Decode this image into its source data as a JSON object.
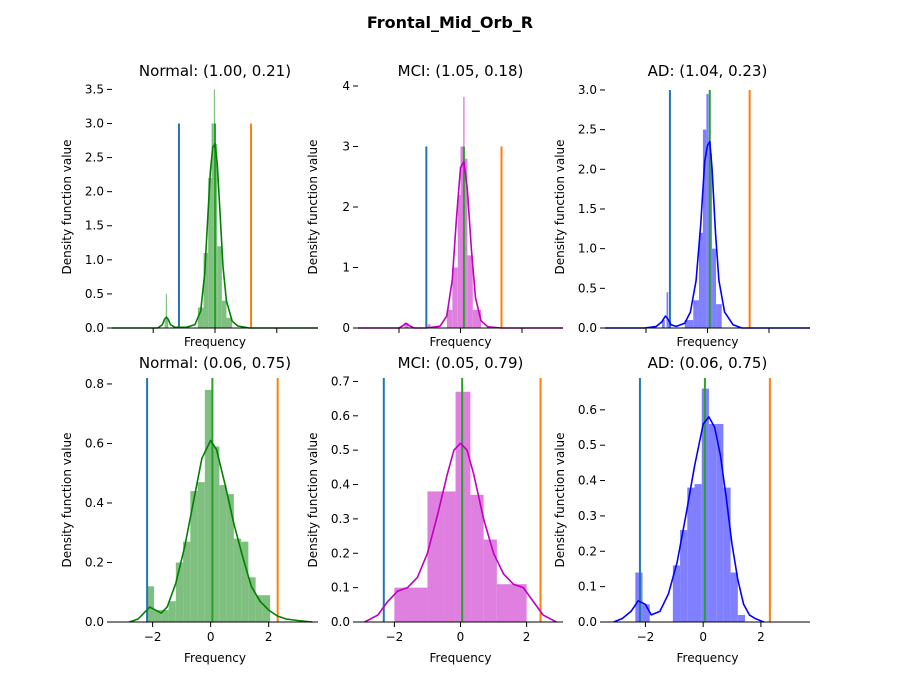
{
  "figure": {
    "suptitle": "Frontal_Mid_Orb_R"
  },
  "colors": {
    "Normal": "#008000",
    "MCI": "#bf00bf",
    "AD": "#0000ff",
    "Normal_hist": "#7fbf7f",
    "MCI_hist": "#df7fdf",
    "AD_hist": "#7f7fff",
    "lower_line": "#1f77b4",
    "upper_line": "#ff7f0e",
    "mean_line": "#2ca02c"
  },
  "chart_data": [
    {
      "type": "histogram+kde",
      "title": "Normal: (1.00, 0.21)",
      "group": "Normal",
      "xlabel": "Frequency",
      "ylabel": "Density function value",
      "xlim": [
        -0.8,
        2.8
      ],
      "ylim": [
        0,
        3.55
      ],
      "yticks": [
        0.0,
        0.5,
        1.0,
        1.5,
        2.0,
        2.5,
        3.0,
        3.5
      ],
      "xticks": [],
      "hist": [
        {
          "x0": 0.12,
          "x1": 0.14,
          "h": 0.15
        },
        {
          "x0": 0.14,
          "x1": 0.16,
          "h": 0.5
        },
        {
          "x0": 0.16,
          "x1": 0.18,
          "h": 0.15
        },
        {
          "x0": 0.7,
          "x1": 0.8,
          "h": 0.3
        },
        {
          "x0": 0.8,
          "x1": 0.88,
          "h": 1.1
        },
        {
          "x0": 0.88,
          "x1": 0.94,
          "h": 2.2
        },
        {
          "x0": 0.94,
          "x1": 0.98,
          "h": 3.0
        },
        {
          "x0": 0.98,
          "x1": 1.0,
          "h": 3.5
        },
        {
          "x0": 1.0,
          "x1": 1.04,
          "h": 2.7
        },
        {
          "x0": 1.04,
          "x1": 1.12,
          "h": 1.2
        },
        {
          "x0": 1.12,
          "x1": 1.2,
          "h": 0.4
        },
        {
          "x0": 1.2,
          "x1": 1.3,
          "h": 0.15
        }
      ],
      "kde": {
        "x": [
          -0.8,
          0.0,
          0.08,
          0.12,
          0.15,
          0.18,
          0.22,
          0.3,
          0.5,
          0.65,
          0.75,
          0.82,
          0.88,
          0.92,
          0.96,
          1.0,
          1.04,
          1.08,
          1.14,
          1.2,
          1.3,
          1.4,
          1.6,
          2.8
        ],
        "y": [
          0.0,
          0.0,
          0.05,
          0.13,
          0.16,
          0.13,
          0.05,
          0.01,
          0.01,
          0.05,
          0.25,
          0.8,
          1.7,
          2.3,
          2.65,
          2.7,
          2.4,
          1.8,
          0.9,
          0.4,
          0.1,
          0.03,
          0.0,
          0.0
        ]
      },
      "vlines": [
        {
          "x": 0.37,
          "ymax": 3.0,
          "role": "lower_line"
        },
        {
          "x": 1.0,
          "ymax": 3.0,
          "role": "mean_line"
        },
        {
          "x": 1.63,
          "ymax": 3.0,
          "role": "upper_line"
        }
      ]
    },
    {
      "type": "histogram+kde",
      "title": "MCI: (1.05, 0.18)",
      "group": "MCI",
      "xlabel": "Frequency",
      "ylabel": "Density function value",
      "xlim": [
        -0.5,
        2.5
      ],
      "ylim": [
        0,
        4.0
      ],
      "yticks": [
        0,
        1,
        2,
        3,
        4
      ],
      "xticks": [],
      "hist": [
        {
          "x0": 0.18,
          "x1": 0.24,
          "h": 0.08
        },
        {
          "x0": 0.52,
          "x1": 0.56,
          "h": 0.06
        },
        {
          "x0": 0.8,
          "x1": 0.88,
          "h": 0.3
        },
        {
          "x0": 0.88,
          "x1": 0.96,
          "h": 1.0
        },
        {
          "x0": 0.96,
          "x1": 1.0,
          "h": 2.2
        },
        {
          "x0": 1.0,
          "x1": 1.04,
          "h": 3.0
        },
        {
          "x0": 1.04,
          "x1": 1.06,
          "h": 3.82
        },
        {
          "x0": 1.06,
          "x1": 1.1,
          "h": 2.8
        },
        {
          "x0": 1.1,
          "x1": 1.18,
          "h": 1.2
        },
        {
          "x0": 1.18,
          "x1": 1.3,
          "h": 0.3
        }
      ],
      "kde": {
        "x": [
          -0.5,
          0.1,
          0.16,
          0.2,
          0.25,
          0.32,
          0.5,
          0.7,
          0.8,
          0.88,
          0.94,
          1.0,
          1.05,
          1.1,
          1.16,
          1.22,
          1.3,
          1.4,
          1.6,
          2.5
        ],
        "y": [
          0.0,
          0.0,
          0.04,
          0.08,
          0.04,
          0.0,
          0.0,
          0.03,
          0.2,
          0.8,
          1.8,
          2.65,
          2.75,
          2.3,
          1.3,
          0.5,
          0.12,
          0.02,
          0.0,
          0.0
        ]
      },
      "vlines": [
        {
          "x": 0.5,
          "ymax": 3.0,
          "role": "lower_line"
        },
        {
          "x": 1.05,
          "ymax": 3.0,
          "role": "mean_line"
        },
        {
          "x": 1.6,
          "ymax": 3.0,
          "role": "upper_line"
        }
      ]
    },
    {
      "type": "histogram+kde",
      "title": "AD: (1.04, 0.23)",
      "group": "AD",
      "xlabel": "Frequency",
      "ylabel": "Density function value",
      "xlim": [
        -0.8,
        2.8
      ],
      "ylim": [
        0,
        3.05
      ],
      "yticks": [
        0.0,
        0.5,
        1.0,
        1.5,
        2.0,
        2.5,
        3.0
      ],
      "xticks": [],
      "hist": [
        {
          "x0": 0.2,
          "x1": 0.25,
          "h": 0.1
        },
        {
          "x0": 0.28,
          "x1": 0.31,
          "h": 0.45
        },
        {
          "x0": 0.31,
          "x1": 0.34,
          "h": 0.1
        },
        {
          "x0": 0.6,
          "x1": 0.75,
          "h": 0.1
        },
        {
          "x0": 0.75,
          "x1": 0.85,
          "h": 0.35
        },
        {
          "x0": 0.85,
          "x1": 0.92,
          "h": 1.2
        },
        {
          "x0": 0.92,
          "x1": 0.98,
          "h": 2.5
        },
        {
          "x0": 0.98,
          "x1": 1.02,
          "h": 2.95
        },
        {
          "x0": 1.02,
          "x1": 1.08,
          "h": 2.2
        },
        {
          "x0": 1.08,
          "x1": 1.15,
          "h": 1.0
        },
        {
          "x0": 1.15,
          "x1": 1.25,
          "h": 0.3
        }
      ],
      "kde": {
        "x": [
          -0.8,
          -0.1,
          0.1,
          0.2,
          0.26,
          0.3,
          0.36,
          0.45,
          0.6,
          0.7,
          0.8,
          0.88,
          0.95,
          1.0,
          1.04,
          1.08,
          1.14,
          1.2,
          1.3,
          1.45,
          1.6,
          2.8
        ],
        "y": [
          0.0,
          0.0,
          0.02,
          0.08,
          0.15,
          0.12,
          0.04,
          0.02,
          0.06,
          0.2,
          0.6,
          1.3,
          2.1,
          2.3,
          2.35,
          2.0,
          1.2,
          0.6,
          0.2,
          0.04,
          0.0,
          0.0
        ]
      },
      "vlines": [
        {
          "x": 0.34,
          "ymax": 3.0,
          "role": "lower_line"
        },
        {
          "x": 1.04,
          "ymax": 3.0,
          "role": "mean_line"
        },
        {
          "x": 1.74,
          "ymax": 3.0,
          "role": "upper_line"
        }
      ]
    },
    {
      "type": "histogram+kde",
      "title": "Normal: (0.06, 0.75)",
      "group": "Normal",
      "xlabel": "Frequency",
      "ylabel": "Density function value",
      "xlim": [
        -3.4,
        3.7
      ],
      "ylim": [
        0,
        0.82
      ],
      "yticks": [
        0.0,
        0.2,
        0.4,
        0.6,
        0.8
      ],
      "xticks": [
        -2,
        0,
        2
      ],
      "hist": [
        {
          "x0": -2.2,
          "x1": -1.95,
          "h": 0.12
        },
        {
          "x0": -1.95,
          "x1": -1.7,
          "h": 0.04
        },
        {
          "x0": -1.7,
          "x1": -1.45,
          "h": 0.04
        },
        {
          "x0": -1.45,
          "x1": -1.2,
          "h": 0.07
        },
        {
          "x0": -1.2,
          "x1": -0.95,
          "h": 0.2
        },
        {
          "x0": -0.95,
          "x1": -0.7,
          "h": 0.27
        },
        {
          "x0": -0.7,
          "x1": -0.45,
          "h": 0.44
        },
        {
          "x0": -0.45,
          "x1": -0.2,
          "h": 0.47
        },
        {
          "x0": -0.2,
          "x1": 0.05,
          "h": 0.78
        },
        {
          "x0": 0.05,
          "x1": 0.3,
          "h": 0.59
        },
        {
          "x0": 0.3,
          "x1": 0.55,
          "h": 0.46
        },
        {
          "x0": 0.55,
          "x1": 0.8,
          "h": 0.43
        },
        {
          "x0": 0.8,
          "x1": 1.05,
          "h": 0.28
        },
        {
          "x0": 1.05,
          "x1": 1.3,
          "h": 0.27
        },
        {
          "x0": 1.3,
          "x1": 1.55,
          "h": 0.15
        },
        {
          "x0": 1.55,
          "x1": 1.8,
          "h": 0.09
        },
        {
          "x0": 1.8,
          "x1": 2.05,
          "h": 0.09
        }
      ],
      "kde": {
        "x": [
          -2.8,
          -2.5,
          -2.3,
          -2.1,
          -1.9,
          -1.7,
          -1.5,
          -1.2,
          -0.9,
          -0.6,
          -0.3,
          0.0,
          0.2,
          0.5,
          0.8,
          1.1,
          1.4,
          1.7,
          2.0,
          2.3,
          2.6,
          3.0,
          3.5
        ],
        "y": [
          0.0,
          0.01,
          0.03,
          0.05,
          0.04,
          0.03,
          0.05,
          0.13,
          0.25,
          0.4,
          0.55,
          0.61,
          0.58,
          0.46,
          0.33,
          0.22,
          0.12,
          0.07,
          0.04,
          0.02,
          0.01,
          0.005,
          0.0
        ]
      },
      "vlines": [
        {
          "x": -2.19,
          "ymax": 0.82,
          "role": "lower_line"
        },
        {
          "x": 0.06,
          "ymax": 0.82,
          "role": "mean_line"
        },
        {
          "x": 2.31,
          "ymax": 0.82,
          "role": "upper_line"
        }
      ]
    },
    {
      "type": "histogram+kde",
      "title": "MCI: (0.05, 0.79)",
      "group": "MCI",
      "xlabel": "Frequency",
      "ylabel": "Density function value",
      "xlim": [
        -3.1,
        3.1
      ],
      "ylim": [
        0,
        0.71
      ],
      "yticks": [
        0.0,
        0.1,
        0.2,
        0.3,
        0.4,
        0.5,
        0.6,
        0.7
      ],
      "xticks": [
        -2,
        0,
        2
      ],
      "hist": [
        {
          "x0": -2.0,
          "x1": -1.0,
          "h": 0.1
        },
        {
          "x0": -1.0,
          "x1": -0.5,
          "h": 0.38
        },
        {
          "x0": -0.5,
          "x1": -0.15,
          "h": 0.38
        },
        {
          "x0": -0.15,
          "x1": 0.3,
          "h": 0.67
        },
        {
          "x0": 0.3,
          "x1": 0.7,
          "h": 0.37
        },
        {
          "x0": 0.7,
          "x1": 1.1,
          "h": 0.24
        },
        {
          "x0": 1.1,
          "x1": 2.0,
          "h": 0.11
        }
      ],
      "kde": {
        "x": [
          -2.9,
          -2.5,
          -2.2,
          -1.9,
          -1.6,
          -1.3,
          -1.0,
          -0.7,
          -0.4,
          -0.2,
          0.0,
          0.2,
          0.4,
          0.7,
          1.0,
          1.3,
          1.6,
          1.9,
          2.2,
          2.5,
          2.9
        ],
        "y": [
          0.0,
          0.02,
          0.06,
          0.09,
          0.1,
          0.13,
          0.2,
          0.31,
          0.43,
          0.5,
          0.52,
          0.5,
          0.43,
          0.3,
          0.2,
          0.14,
          0.11,
          0.1,
          0.06,
          0.02,
          0.0
        ]
      },
      "vlines": [
        {
          "x": -2.32,
          "ymax": 0.71,
          "role": "lower_line"
        },
        {
          "x": 0.05,
          "ymax": 0.71,
          "role": "mean_line"
        },
        {
          "x": 2.42,
          "ymax": 0.71,
          "role": "upper_line"
        }
      ]
    },
    {
      "type": "histogram+kde",
      "title": "AD: (0.06, 0.75)",
      "group": "AD",
      "xlabel": "Frequency",
      "ylabel": "Density function value",
      "xlim": [
        -3.4,
        3.7
      ],
      "ylim": [
        0,
        0.69
      ],
      "yticks": [
        0.0,
        0.1,
        0.2,
        0.3,
        0.4,
        0.5,
        0.6
      ],
      "xticks": [
        -2,
        0,
        2
      ],
      "hist": [
        {
          "x0": -2.35,
          "x1": -2.1,
          "h": 0.14
        },
        {
          "x0": -2.1,
          "x1": -1.85,
          "h": 0.05
        },
        {
          "x0": -1.05,
          "x1": -0.8,
          "h": 0.16
        },
        {
          "x0": -0.8,
          "x1": -0.55,
          "h": 0.26
        },
        {
          "x0": -0.55,
          "x1": -0.3,
          "h": 0.38
        },
        {
          "x0": -0.3,
          "x1": -0.05,
          "h": 0.39
        },
        {
          "x0": -0.05,
          "x1": 0.2,
          "h": 0.66
        },
        {
          "x0": 0.2,
          "x1": 0.45,
          "h": 0.56
        },
        {
          "x0": 0.45,
          "x1": 0.7,
          "h": 0.56
        },
        {
          "x0": 0.7,
          "x1": 0.95,
          "h": 0.38
        },
        {
          "x0": 0.95,
          "x1": 1.2,
          "h": 0.14
        },
        {
          "x0": 1.2,
          "x1": 1.45,
          "h": 0.02
        }
      ],
      "kde": {
        "x": [
          -3.1,
          -2.8,
          -2.5,
          -2.25,
          -2.0,
          -1.8,
          -1.5,
          -1.2,
          -0.9,
          -0.6,
          -0.3,
          0.0,
          0.2,
          0.4,
          0.6,
          0.8,
          1.0,
          1.2,
          1.4,
          1.6,
          1.8,
          2.1
        ],
        "y": [
          0.0,
          0.01,
          0.03,
          0.06,
          0.05,
          0.02,
          0.03,
          0.08,
          0.17,
          0.3,
          0.44,
          0.56,
          0.58,
          0.55,
          0.47,
          0.35,
          0.22,
          0.12,
          0.05,
          0.02,
          0.01,
          0.0
        ]
      },
      "vlines": [
        {
          "x": -2.19,
          "ymax": 0.69,
          "role": "lower_line"
        },
        {
          "x": 0.06,
          "ymax": 0.69,
          "role": "mean_line"
        },
        {
          "x": 2.31,
          "ymax": 0.69,
          "role": "upper_line"
        }
      ]
    }
  ]
}
